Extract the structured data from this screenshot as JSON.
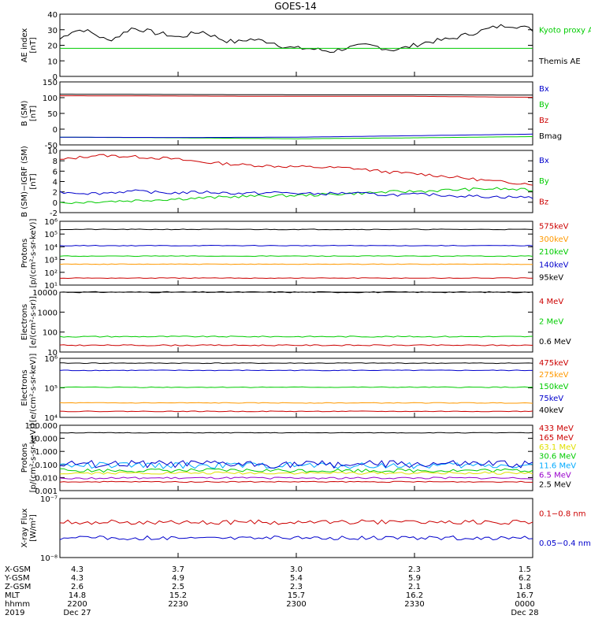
{
  "title": "GOES-14",
  "colors": {
    "black": "#000000",
    "red": "#cc0000",
    "green": "#00cc00",
    "blue": "#0000cc",
    "orange": "#ff9900",
    "cyan": "#00aaff",
    "yellow": "#e0e000",
    "purple": "#9900cc",
    "axis": "#000000"
  },
  "chart_data": [
    {
      "id": "ae",
      "type": "line",
      "ylabel": [
        "AE index",
        "[nT]"
      ],
      "yticks": [
        "40",
        "30",
        "20",
        "10",
        "0"
      ],
      "series": [
        {
          "name": "Kyoto proxy AE",
          "color": "green"
        },
        {
          "name": "Themis AE",
          "color": "black"
        }
      ],
      "ylim": [
        0,
        40
      ],
      "values_black": [
        24,
        29,
        30,
        27,
        23,
        26,
        31,
        30,
        28,
        27,
        25,
        27,
        29,
        26,
        23,
        22,
        24,
        23,
        22,
        19,
        18,
        18,
        17,
        16,
        18,
        19,
        20,
        19,
        17,
        18,
        20,
        22,
        23,
        24,
        26,
        28,
        30,
        32,
        33,
        32,
        30
      ],
      "values_green": [
        18
      ]
    },
    {
      "id": "b",
      "type": "line",
      "ylabel": [
        "B (SM)",
        "[nT]"
      ],
      "yticks": [
        "150",
        "100",
        "50",
        "0",
        "-50"
      ],
      "series": [
        {
          "name": "Bx",
          "color": "blue"
        },
        {
          "name": "By",
          "color": "green"
        },
        {
          "name": "Bz",
          "color": "red"
        },
        {
          "name": "Bmag",
          "color": "black"
        }
      ],
      "ylim": [
        -55,
        150
      ],
      "bmag": [
        110,
        109,
        108,
        108,
        107
      ],
      "bz": [
        105,
        104,
        103,
        103,
        100
      ],
      "by": [
        -30,
        -32,
        -35,
        -32,
        -28
      ],
      "bx": [
        -30,
        -31,
        -30,
        -25,
        -20
      ]
    },
    {
      "id": "bigrf",
      "type": "line",
      "ylabel": [
        "B (SM)−IGRF (SM)",
        "[nT]"
      ],
      "yticks": [
        "10",
        "8",
        "6",
        "4",
        "2",
        "0",
        "-2"
      ],
      "series": [
        {
          "name": "Bx",
          "color": "blue"
        },
        {
          "name": "By",
          "color": "green"
        },
        {
          "name": "Bz",
          "color": "red"
        }
      ],
      "ylim": [
        -2.5,
        10.5
      ],
      "bz": [
        8.5,
        9.5,
        9.2,
        8.8,
        8,
        7.5,
        7.2,
        7,
        6.8,
        6,
        5.5,
        4.8,
        4,
        3.5
      ],
      "by": [
        -0.5,
        -0.2,
        0,
        0.3,
        0.6,
        0.9,
        1,
        1.2,
        1.5,
        1.8,
        2,
        2.3,
        2.5,
        2.2
      ],
      "bx": [
        1.8,
        1.5,
        2,
        1.6,
        1.8,
        1.5,
        1.7,
        1.4,
        1.6,
        1.2,
        1.3,
        1,
        0.8,
        0.7
      ]
    },
    {
      "id": "protons1",
      "type": "line",
      "ylabel": [
        "Protons",
        "[p/(cm²-s-sr-keV)]"
      ],
      "yticks": [
        "10⁶",
        "10⁵",
        "10⁴",
        "10³",
        "10²",
        "10¹"
      ],
      "series": [
        {
          "name": "575keV",
          "color": "red"
        },
        {
          "name": "300keV",
          "color": "orange"
        },
        {
          "name": "210keV",
          "color": "green"
        },
        {
          "name": "140keV",
          "color": "blue"
        },
        {
          "name": "95keV",
          "color": "black"
        }
      ],
      "log_levels": {
        "black": 5.6,
        "blue": 4.2,
        "green": 3.3,
        "orange": 2.6,
        "red": 1.4
      }
    },
    {
      "id": "electrons1",
      "type": "line",
      "ylabel": [
        "Electrons",
        "[e/(cm²-s-sr)]"
      ],
      "yticks": [
        "10000",
        "1000",
        "100",
        "10"
      ],
      "series": [
        {
          "name": "4 MeV",
          "color": "red"
        },
        {
          "name": "2 MeV",
          "color": "green"
        },
        {
          "name": "0.6 MeV",
          "color": "black"
        }
      ],
      "log_levels": {
        "black": 4.05,
        "green": 1.75,
        "red": 1.3
      }
    },
    {
      "id": "electrons2",
      "type": "line",
      "ylabel": [
        "Electrons",
        "[e/(cm²-s-sr-keV)]"
      ],
      "yticks": [
        "10⁶",
        "10⁵",
        "10⁴"
      ],
      "series": [
        {
          "name": "475keV",
          "color": "red"
        },
        {
          "name": "275keV",
          "color": "orange"
        },
        {
          "name": "150keV",
          "color": "green"
        },
        {
          "name": "75keV",
          "color": "blue"
        },
        {
          "name": "40keV",
          "color": "black"
        }
      ],
      "log_levels": {
        "black": 5.85,
        "blue": 5.55,
        "green": 4.85,
        "orange": 4.2,
        "red": 3.85
      }
    },
    {
      "id": "protons2",
      "type": "line",
      "ylabel": [
        "Protons",
        "[p/(cm²-s-sr-keV)]"
      ],
      "yticks": [
        "100.000",
        "10.000",
        "1.000",
        "0.100",
        "0.010",
        "0.001"
      ],
      "series": [
        {
          "name": "433 MeV",
          "color": "red"
        },
        {
          "name": "165 MeV",
          "color": "red"
        },
        {
          "name": "63.1 MeV",
          "color": "yellow"
        },
        {
          "name": "30.6 MeV",
          "color": "green"
        },
        {
          "name": "11.6 MeV",
          "color": "cyan"
        },
        {
          "name": "6.5 MeV",
          "color": "purple"
        },
        {
          "name": "2.5 MeV",
          "color": "black"
        }
      ]
    },
    {
      "id": "xray",
      "type": "line",
      "ylabel": [
        "X-ray Flux",
        "[W/m²]"
      ],
      "yticks": [
        "10⁻⁷",
        "10⁻⁸"
      ],
      "series": [
        {
          "name": "0.1−0.8 nm",
          "color": "red"
        },
        {
          "name": "0.05−0.4 nm",
          "color": "blue"
        }
      ]
    }
  ],
  "footer": {
    "labels": [
      "X-GSM",
      "Y-GSM",
      "Z-GSM",
      "MLT",
      "hhmm",
      "2019"
    ],
    "columns": [
      [
        "4.3",
        "4.3",
        "2.6",
        "14.8",
        "2200",
        "Dec 27"
      ],
      [
        "3.7",
        "4.9",
        "2.5",
        "15.2",
        "2230",
        ""
      ],
      [
        "3.0",
        "5.4",
        "2.3",
        "15.7",
        "2300",
        ""
      ],
      [
        "2.3",
        "5.9",
        "2.1",
        "16.2",
        "2330",
        ""
      ],
      [
        "1.5",
        "6.2",
        "1.8",
        "16.7",
        "0000",
        "Dec 28"
      ]
    ]
  }
}
